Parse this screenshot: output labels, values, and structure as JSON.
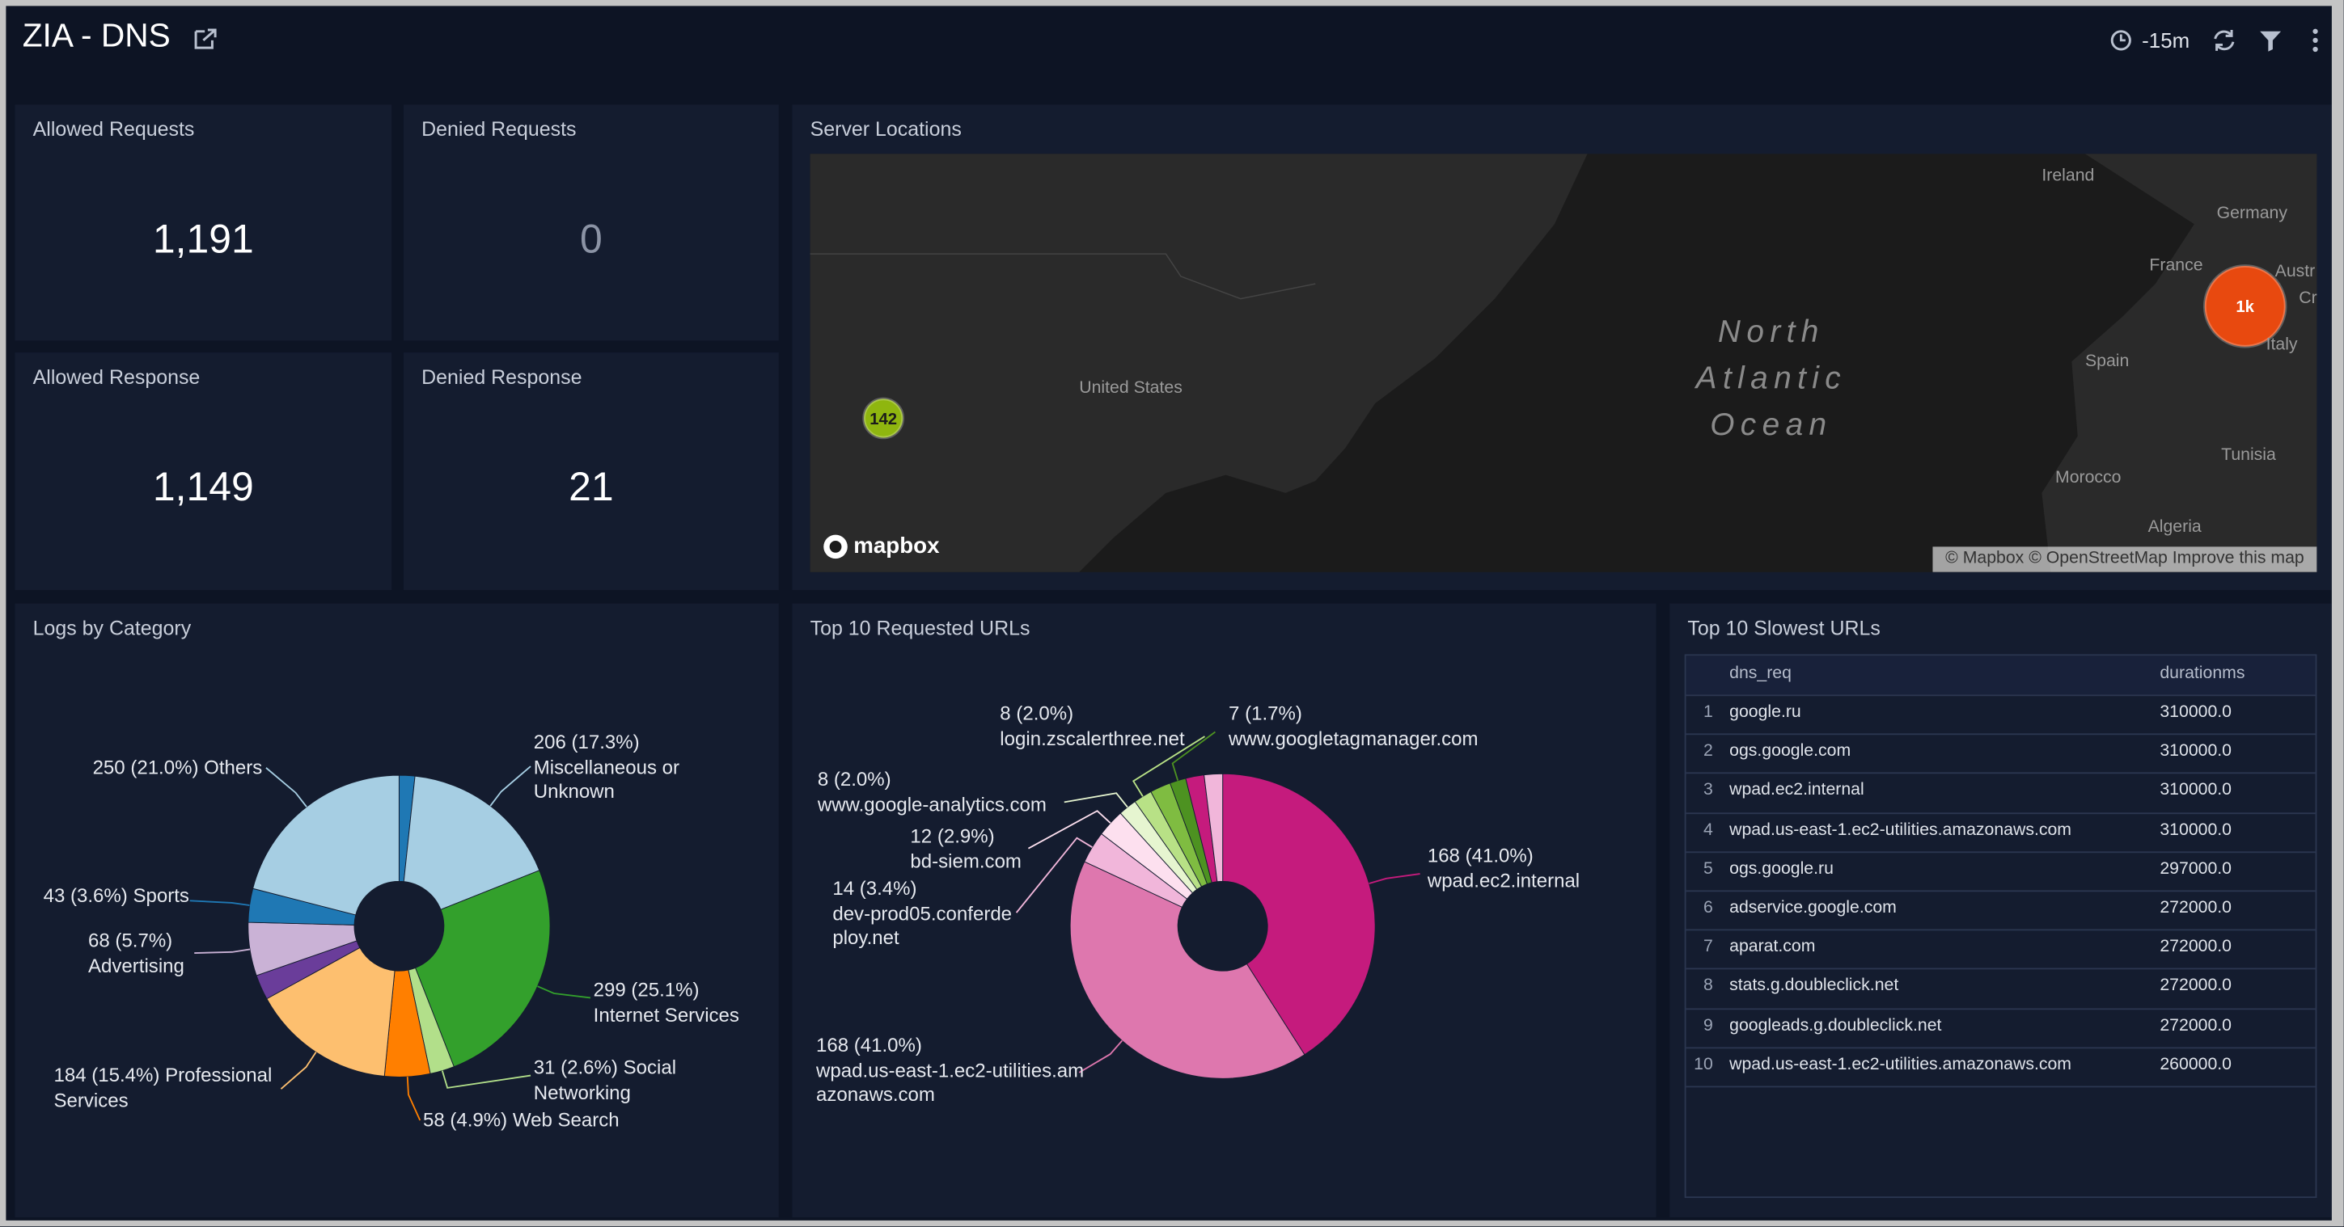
{
  "header": {
    "title": "ZIA - DNS",
    "time_range": "-15m"
  },
  "stats": [
    {
      "title": "Allowed Requests",
      "value": "1,191"
    },
    {
      "title": "Denied Requests",
      "value": "0"
    },
    {
      "title": "Allowed Response",
      "value": "1,149"
    },
    {
      "title": "Denied Response",
      "value": "21"
    }
  ],
  "server_locations": {
    "title": "Server Locations",
    "ocean_label": "North Atlantic Ocean",
    "places": [
      "United States",
      "Ireland",
      "Germany",
      "France",
      "Austr",
      "Cr",
      "Italy",
      "Spain",
      "Tunisia",
      "Morocco",
      "Algeria"
    ],
    "clusters": [
      "142",
      "1k"
    ],
    "logo": "mapbox",
    "attribution": "© Mapbox © OpenStreetMap Improve this map"
  },
  "logs_by_category": {
    "title": "Logs by Category",
    "type": "pie",
    "categories": [
      null,
      "Miscellaneous or Unknown",
      "Internet Services",
      "Social Networking",
      "Web Search",
      "Professional Services",
      null,
      "Advertising",
      "Sports",
      "Others"
    ],
    "values": [
      20,
      206,
      299,
      31,
      58,
      184,
      32,
      68,
      43,
      250
    ],
    "value_labels": [
      null,
      "206 (17.3%)",
      "299 (25.1%)",
      "31 (2.6%)",
      "58 (4.9%)",
      "184 (15.4%)",
      null,
      "68 (5.7%)",
      "43 (3.6%)",
      "250 (21.0%)"
    ],
    "colors": [
      "#1f78b4",
      "#a6cee3",
      "#33a02c",
      "#b2df8a",
      "#ff7f00",
      "#fdbf6f",
      "#6a3d9a",
      "#cab2d6",
      "#1f78b4",
      "#a6cee3"
    ]
  },
  "top_requested_urls": {
    "title": "Top 10 Requested URLs",
    "type": "pie",
    "categories": [
      "wpad.ec2.internal",
      "wpad.us-east-1.ec2-utilities.amazonaws.com",
      "dev-prod05.conferdeploy.net",
      "bd-siem.com",
      "www.google-analytics.com",
      "login.zscalerthree.net",
      null,
      "www.googletagmanager.com",
      null,
      null
    ],
    "values": [
      168,
      168,
      14,
      12,
      8,
      8,
      9,
      7,
      8,
      8
    ],
    "value_labels": [
      "168 (41.0%)",
      "168 (41.0%)",
      "14 (3.4%)",
      "12 (2.9%)",
      "8 (2.0%)",
      "8 (2.0%)",
      null,
      "7 (1.7%)",
      null,
      null
    ],
    "colors": [
      "#c51b7d",
      "#de77ae",
      "#f1b6da",
      "#fde0ef",
      "#e6f5d0",
      "#b8e186",
      "#7fbc41",
      "#4d9221",
      "#c51b7d",
      "#f1b6da"
    ]
  },
  "slowest_urls": {
    "title": "Top 10 Slowest URLs",
    "columns": [
      "dns_req",
      "durationms"
    ],
    "rows": [
      [
        "1",
        "google.ru",
        "310000.0"
      ],
      [
        "2",
        "ogs.google.com",
        "310000.0"
      ],
      [
        "3",
        "wpad.ec2.internal",
        "310000.0"
      ],
      [
        "4",
        "wpad.us-east-1.ec2-utilities.amazonaws.com",
        "310000.0"
      ],
      [
        "5",
        "ogs.google.ru",
        "297000.0"
      ],
      [
        "6",
        "adservice.google.com",
        "272000.0"
      ],
      [
        "7",
        "aparat.com",
        "272000.0"
      ],
      [
        "8",
        "stats.g.doubleclick.net",
        "272000.0"
      ],
      [
        "9",
        "googleads.g.doubleclick.net",
        "272000.0"
      ],
      [
        "10",
        "wpad.us-east-1.ec2-utilities.amazonaws.com",
        "260000.0"
      ]
    ]
  }
}
